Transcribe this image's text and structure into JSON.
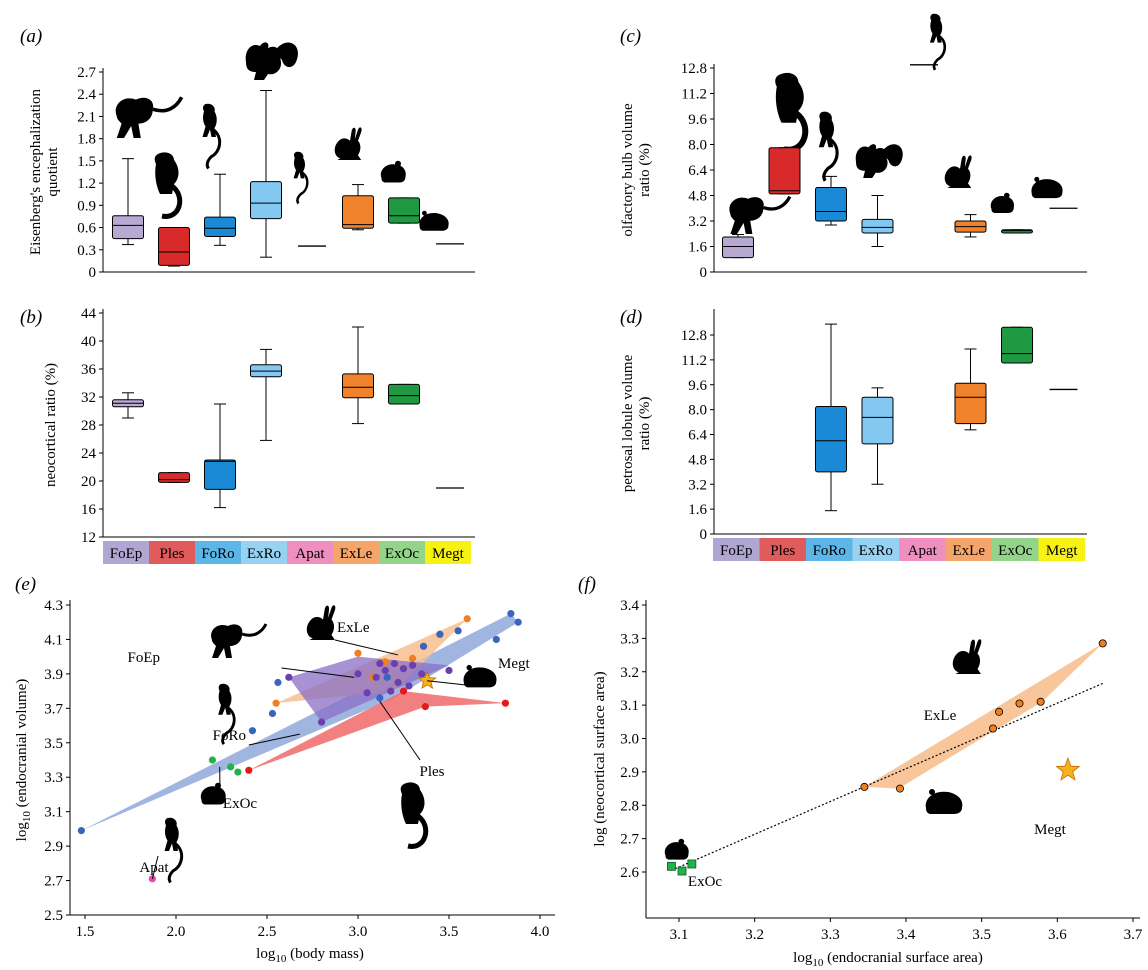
{
  "colors": {
    "FoEp": "#b7a9d2",
    "Ples": "#d82a2a",
    "FoRo": "#1b8ad6",
    "ExRo": "#82c8f0",
    "Apat": "#e878a8",
    "ExLe": "#f0822c",
    "ExOc": "#1f9a43",
    "Megt": "#f5ea1c",
    "legend_FoEp": "#b0a6d2",
    "legend_Ples": "#e05c5c",
    "legend_FoRo": "#5cb6e8",
    "legend_ExRo": "#98d2f2",
    "legend_Apat": "#ef8fbf",
    "legend_ExLe": "#f5a46a",
    "legend_ExOc": "#94d48a",
    "legend_Megt": "#f8f214",
    "hull_blue": "#8fa9dc",
    "hull_orange": "#f7c08f",
    "hull_red": "#f06a6a",
    "hull_purple": "#8a6fc6",
    "pt_blue": "#3a64c0",
    "pt_orange": "#f07f22",
    "pt_red": "#e41a1a",
    "pt_purple": "#6b3fb0",
    "pt_green": "#22b24a",
    "pt_pink": "#e848a8",
    "star": "#f5b21c"
  },
  "groups": [
    "FoEp",
    "Ples",
    "FoRo",
    "ExRo",
    "Apat",
    "ExLe",
    "ExOc",
    "Megt"
  ],
  "chart_data": [
    {
      "panel": "(a)",
      "type": "box",
      "ylabel": "Eisenberg's encephalization quotient",
      "ylim": [
        0,
        2.7
      ],
      "yticks": [
        "0",
        "0.3",
        "0.6",
        "0.9",
        "1.2",
        "1.5",
        "1.8",
        "2.1",
        "2.4",
        "2.7"
      ],
      "categories": [
        "FoEp",
        "Ples",
        "FoRo",
        "ExRo",
        "Apat",
        "ExLe",
        "ExOc",
        "Megt"
      ],
      "boxes": [
        {
          "group": "FoEp",
          "min": 0.37,
          "q1": 0.45,
          "median": 0.63,
          "q3": 0.76,
          "max": 1.53
        },
        {
          "group": "Ples",
          "min": 0.08,
          "q1": 0.09,
          "median": 0.27,
          "q3": 0.6,
          "max": 0.6
        },
        {
          "group": "FoRo",
          "min": 0.36,
          "q1": 0.48,
          "median": 0.59,
          "q3": 0.74,
          "max": 1.32
        },
        {
          "group": "ExRo",
          "min": 0.2,
          "q1": 0.72,
          "median": 0.93,
          "q3": 1.22,
          "max": 2.45
        },
        {
          "group": "Apat",
          "single": 0.35
        },
        {
          "group": "ExLe",
          "min": 0.57,
          "q1": 0.59,
          "median": 0.64,
          "q3": 1.03,
          "max": 1.18
        },
        {
          "group": "ExOc",
          "min": 0.66,
          "q1": 0.66,
          "median": 0.76,
          "q3": 1.0,
          "max": 1.0
        },
        {
          "group": "Megt",
          "single": 0.38
        }
      ]
    },
    {
      "panel": "(b)",
      "type": "box",
      "ylabel": "neocortical ratio (%)",
      "ylim": [
        12,
        44
      ],
      "yticks": [
        "12",
        "16",
        "20",
        "24",
        "28",
        "32",
        "36",
        "40",
        "44"
      ],
      "categories": [
        "FoEp",
        "Ples",
        "FoRo",
        "ExRo",
        "Apat",
        "ExLe",
        "ExOc",
        "Megt"
      ],
      "boxes": [
        {
          "group": "FoEp",
          "min": 29,
          "q1": 30.6,
          "median": 31.1,
          "q3": 31.6,
          "max": 32.6
        },
        {
          "group": "Ples",
          "min": 19.8,
          "q1": 19.8,
          "median": 20.2,
          "q3": 21.2,
          "max": 21.2
        },
        {
          "group": "FoRo",
          "min": 16.2,
          "q1": 18.8,
          "median": 22.8,
          "q3": 23,
          "max": 31
        },
        {
          "group": "ExRo",
          "min": 25.8,
          "q1": 34.9,
          "median": 35.7,
          "q3": 36.6,
          "max": 38.8
        },
        {
          "group": "ExLe",
          "min": 28.2,
          "q1": 31.9,
          "median": 33.4,
          "q3": 35.3,
          "max": 42
        },
        {
          "group": "ExOc",
          "min": 31,
          "q1": 31,
          "median": 32.2,
          "q3": 33.8,
          "max": 33.8
        },
        {
          "group": "Megt",
          "single": 19
        }
      ]
    },
    {
      "panel": "(c)",
      "type": "box",
      "ylabel": "olfactory bulb volume ratio (%)",
      "ylim": [
        0,
        12.8
      ],
      "yticks": [
        "0",
        "1.6",
        "3.2",
        "4.8",
        "6.4",
        "8.0",
        "9.6",
        "11.2",
        "12.8"
      ],
      "categories": [
        "FoEp",
        "Ples",
        "FoRo",
        "ExRo",
        "Apat",
        "ExLe",
        "ExOc",
        "Megt"
      ],
      "boxes": [
        {
          "group": "FoEp",
          "min": 0.9,
          "q1": 0.9,
          "median": 1.6,
          "q3": 2.2,
          "max": 2.35
        },
        {
          "group": "Ples",
          "min": 4.9,
          "q1": 4.9,
          "median": 5.1,
          "q3": 7.8,
          "max": 7.8
        },
        {
          "group": "FoRo",
          "min": 2.95,
          "q1": 3.2,
          "median": 3.8,
          "q3": 5.3,
          "max": 6.0
        },
        {
          "group": "ExRo",
          "min": 1.6,
          "q1": 2.45,
          "median": 2.8,
          "q3": 3.3,
          "max": 4.8
        },
        {
          "group": "Apat",
          "single": 13.0
        },
        {
          "group": "ExLe",
          "min": 2.2,
          "q1": 2.5,
          "median": 2.85,
          "q3": 3.2,
          "max": 3.6
        },
        {
          "group": "ExOc",
          "min": 2.45,
          "q1": 2.45,
          "median": 2.6,
          "q3": 2.65,
          "max": 2.65
        },
        {
          "group": "Megt",
          "single": 4.0
        }
      ]
    },
    {
      "panel": "(d)",
      "type": "box",
      "ylabel": "petrosal lobule volume ratio (%)",
      "ylim": [
        0,
        12.8
      ],
      "yticks": [
        "0",
        "1.6",
        "3.2",
        "4.8",
        "6.4",
        "8.0",
        "9.6",
        "11.2",
        "12.8"
      ],
      "categories": [
        "FoEp",
        "Ples",
        "FoRo",
        "ExRo",
        "Apat",
        "ExLe",
        "ExOc",
        "Megt"
      ],
      "boxes": [
        {
          "group": "FoRo",
          "min": 1.5,
          "q1": 4.0,
          "median": 6.0,
          "q3": 8.2,
          "max": 13.5
        },
        {
          "group": "ExRo",
          "min": 3.2,
          "q1": 5.8,
          "median": 7.5,
          "q3": 8.8,
          "max": 9.4
        },
        {
          "group": "ExLe",
          "min": 6.7,
          "q1": 7.1,
          "median": 8.8,
          "q3": 9.7,
          "max": 11.9
        },
        {
          "group": "ExOc",
          "min": 11.0,
          "q1": 11.0,
          "median": 11.6,
          "q3": 13.3,
          "max": 13.3
        },
        {
          "group": "Megt",
          "single": 9.3
        }
      ]
    },
    {
      "panel": "(e)",
      "type": "scatter",
      "xlabel": "log",
      "xlabel_sub": "10",
      "xlabel_rest": " (body mass)",
      "ylabel": "log",
      "ylabel_sub": "10",
      "ylabel_rest": " (endocranial volume)",
      "xlim": [
        1.4,
        4.05
      ],
      "ylim": [
        2.5,
        4.3
      ],
      "xticks": [
        "1.5",
        "2.0",
        "2.5",
        "3.0",
        "3.5",
        "4.0"
      ],
      "yticks": [
        "2.5",
        "2.7",
        "2.9",
        "3.1",
        "3.3",
        "3.5",
        "3.7",
        "3.9",
        "4.1",
        "4.3"
      ],
      "hulls": [
        {
          "name": "FoRo",
          "color": "hull_blue",
          "pts": [
            [
              1.48,
              2.99
            ],
            [
              3.84,
              4.25
            ],
            [
              3.88,
              4.2
            ],
            [
              3.2,
              3.76
            ]
          ]
        },
        {
          "name": "ExLe",
          "color": "hull_orange",
          "pts": [
            [
              2.55,
              3.73
            ],
            [
              3.6,
              4.22
            ],
            [
              3.2,
              3.8
            ]
          ]
        },
        {
          "name": "Ples",
          "color": "hull_red",
          "pts": [
            [
              2.4,
              3.34
            ],
            [
              3.25,
              3.8
            ],
            [
              3.81,
              3.73
            ],
            [
              3.37,
              3.71
            ]
          ]
        },
        {
          "name": "FoEp",
          "color": "hull_purple",
          "pts": [
            [
              2.62,
              3.88
            ],
            [
              3.0,
              4.0
            ],
            [
              3.5,
              3.95
            ],
            [
              2.8,
              3.62
            ]
          ]
        }
      ],
      "series": [
        {
          "name": "FoRo",
          "color": "pt_blue",
          "x": [
            1.48,
            2.42,
            2.53,
            2.56,
            3.12,
            3.16,
            3.36,
            3.45,
            3.55,
            3.76,
            3.84,
            3.88
          ],
          "y": [
            2.99,
            3.57,
            3.67,
            3.85,
            3.76,
            3.88,
            4.06,
            4.13,
            4.15,
            4.1,
            4.25,
            4.2
          ]
        },
        {
          "name": "ExLe",
          "color": "pt_orange",
          "x": [
            2.55,
            3.0,
            3.15,
            3.3,
            3.6,
            3.08
          ],
          "y": [
            3.73,
            4.02,
            3.97,
            3.99,
            4.22,
            3.88
          ]
        },
        {
          "name": "Ples",
          "color": "pt_red",
          "x": [
            2.4,
            3.25,
            3.37,
            3.81
          ],
          "y": [
            3.34,
            3.8,
            3.71,
            3.73
          ]
        },
        {
          "name": "FoEp",
          "color": "pt_purple",
          "x": [
            2.62,
            2.8,
            3.0,
            3.05,
            3.1,
            3.12,
            3.15,
            3.18,
            3.2,
            3.22,
            3.25,
            3.28,
            3.3,
            3.35,
            3.5
          ],
          "y": [
            3.88,
            3.62,
            3.9,
            3.79,
            3.88,
            3.96,
            3.92,
            3.8,
            3.96,
            3.85,
            3.93,
            3.83,
            3.95,
            3.9,
            3.92
          ]
        },
        {
          "name": "ExOc",
          "color": "pt_green",
          "x": [
            2.2,
            2.3,
            2.34
          ],
          "y": [
            3.4,
            3.36,
            3.33
          ]
        },
        {
          "name": "Apat",
          "color": "pt_pink",
          "x": [
            1.87
          ],
          "y": [
            2.71
          ]
        }
      ],
      "star": {
        "x": 3.38,
        "y": 3.86
      },
      "labels": [
        "FoEp",
        "ExLe",
        "Megt",
        "FoRo",
        "Ples",
        "ExOc",
        "Apat"
      ]
    },
    {
      "panel": "(f)",
      "type": "scatter",
      "xlabel": "log",
      "xlabel_sub": "10",
      "xlabel_rest": " (endocranial surface area)",
      "ylabel": "log (neocortical surface area)",
      "xlim": [
        3.07,
        3.7
      ],
      "ylim": [
        2.55,
        3.4
      ],
      "xticks": [
        "3.1",
        "3.2",
        "3.3",
        "3.4",
        "3.5",
        "3.6",
        "3.7"
      ],
      "yticks": [
        "2.6",
        "2.7",
        "2.8",
        "2.9",
        "3.0",
        "3.1",
        "3.2",
        "3.3",
        "3.4"
      ],
      "hull": [
        [
          3.345,
          2.855
        ],
        [
          3.66,
          3.285
        ],
        [
          3.58,
          3.11
        ],
        [
          3.39,
          2.85
        ]
      ],
      "series": [
        {
          "name": "ExLe",
          "color": "pt_orange",
          "x": [
            3.345,
            3.392,
            3.515,
            3.523,
            3.55,
            3.578,
            3.66
          ],
          "y": [
            2.855,
            2.85,
            3.03,
            3.08,
            3.105,
            3.11,
            3.285
          ]
        },
        {
          "name": "ExOc",
          "color": "pt_green",
          "x": [
            3.09,
            3.104,
            3.117
          ],
          "y": [
            2.617,
            2.603,
            2.624
          ]
        }
      ],
      "trend": {
        "x": [
          3.09,
          3.66
        ],
        "y": [
          2.605,
          3.165
        ]
      },
      "star": {
        "x": 3.614,
        "y": 2.905
      },
      "labels": [
        "ExLe",
        "Megt",
        "ExOc"
      ]
    }
  ],
  "panels": {
    "a": {
      "letter": "(a)"
    },
    "b": {
      "letter": "(b)"
    },
    "c": {
      "letter": "(c)"
    },
    "d": {
      "letter": "(d)"
    },
    "e": {
      "letter": "(e)"
    },
    "f": {
      "letter": "(f)"
    }
  }
}
